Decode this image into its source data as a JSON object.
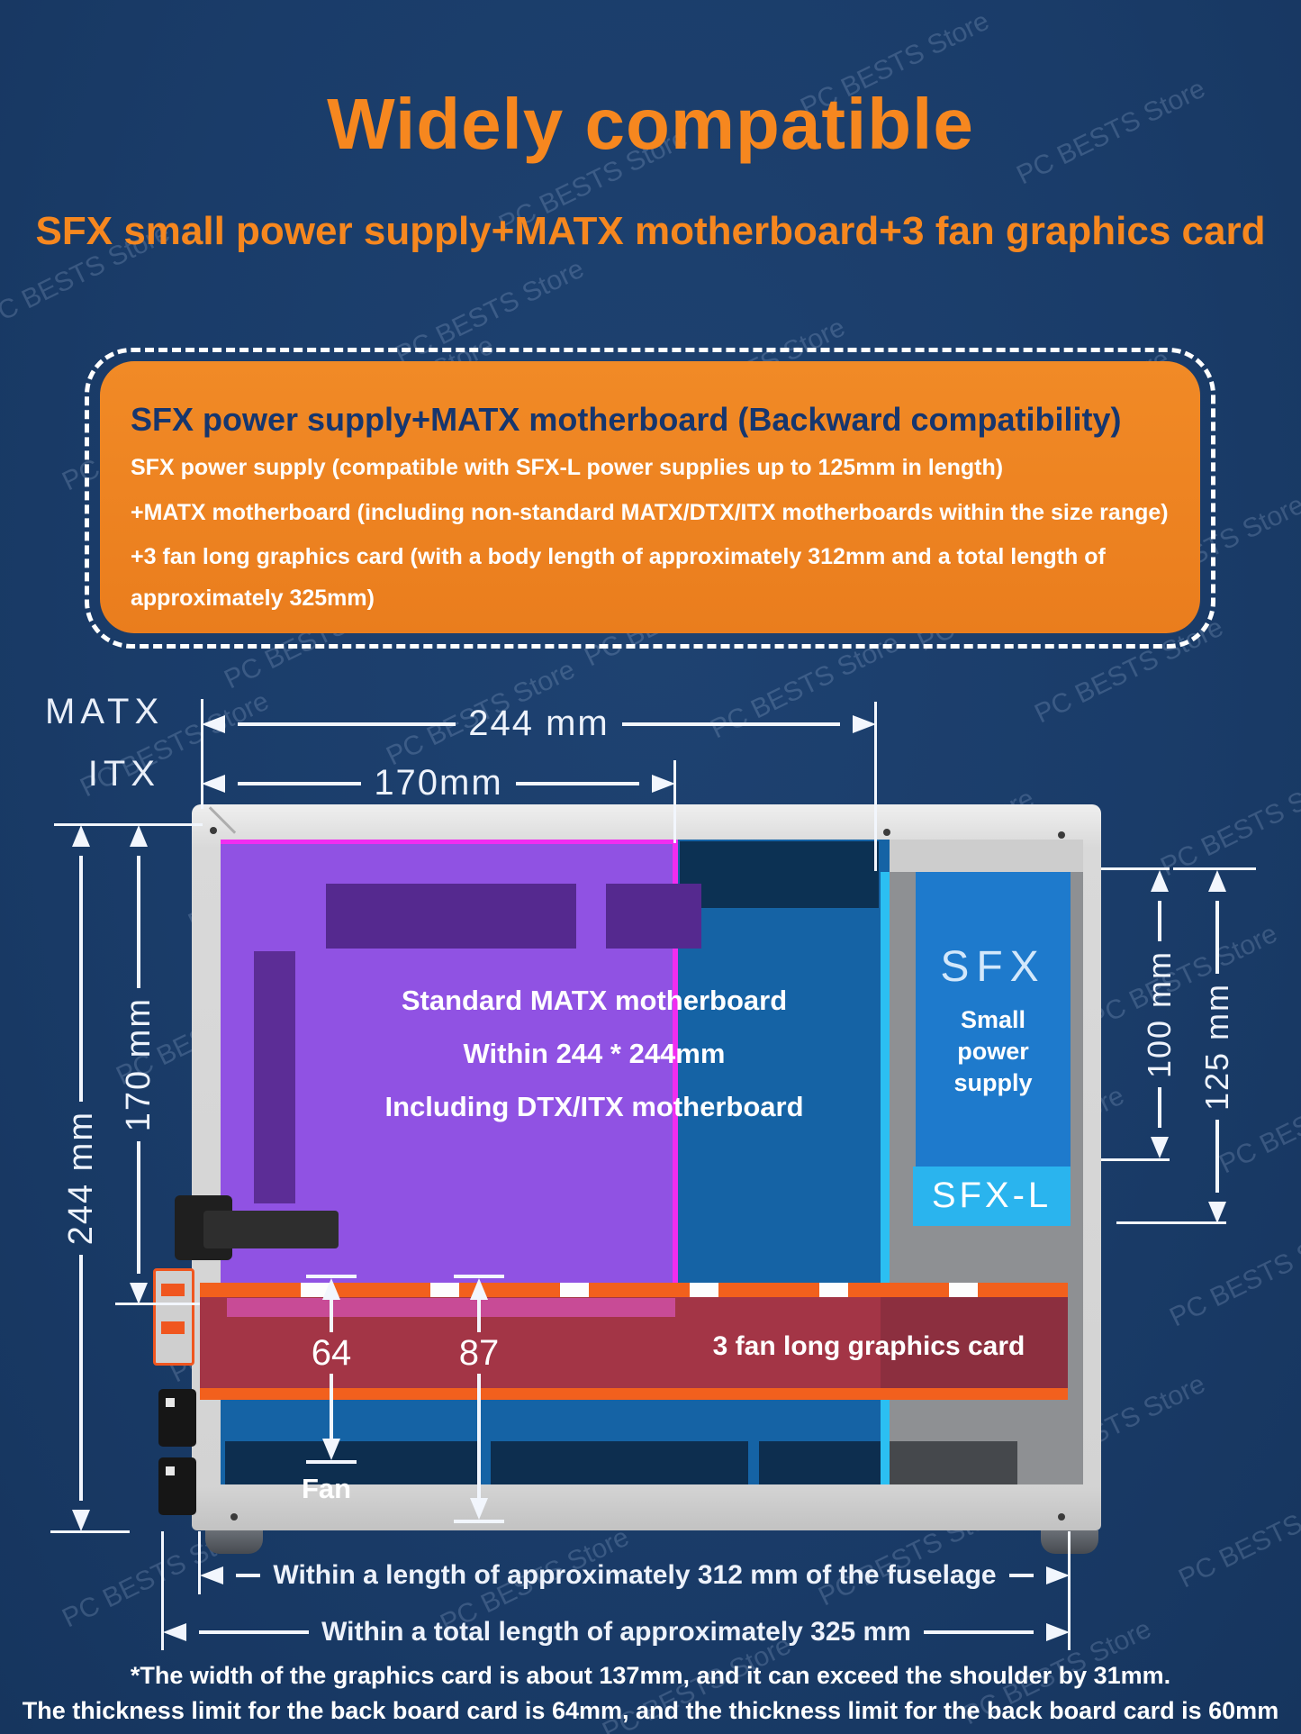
{
  "title": "Widely compatible",
  "subtitle": "SFX small power supply+MATX motherboard+3 fan graphics card",
  "info_box": {
    "heading": "SFX power supply+MATX motherboard (Backward compatibility)",
    "lines": [
      "SFX power supply (compatible with SFX-L power supplies up to 125mm in length)",
      "+MATX motherboard (including non-standard MATX/DTX/ITX motherboards within the size range)",
      "+3 fan long graphics card (with a body length of approximately 312mm and a total length of",
      "approximately 325mm)"
    ]
  },
  "diagram": {
    "board_labels": {
      "matx": "MATX",
      "itx": "ITX"
    },
    "dims": {
      "width_matx": "244 mm",
      "width_itx": "170mm",
      "left_height_outer": "244 mm",
      "left_height_inner": "170 mm",
      "right_height_psu": "100 mm",
      "right_height_psu_long": "125 mm",
      "slot_offset_64": "64",
      "slot_offset_87": "87"
    },
    "motherboard_text": [
      "Standard MATX motherboard",
      "Within 244 * 244mm",
      "Including DTX/ITX motherboard"
    ],
    "psu": {
      "type": "SFX",
      "caption_lines": [
        "Small",
        "power",
        "supply"
      ],
      "long_type": "SFX-L"
    },
    "gpu_label": "3 fan long graphics card",
    "fan_label": "Fan",
    "bottom_dims": {
      "body_length": "Within a length of approximately 312 mm of the fuselage",
      "total_length": "Within a total length of approximately 325 mm"
    }
  },
  "footnotes": [
    "*The width of the graphics card is about 137mm, and it can exceed the shoulder by 31mm.",
    "The thickness limit for the back board card is 64mm, and the thickness limit for the back board card is 60mm"
  ],
  "watermark": {
    "text": "PC BESTS Store"
  },
  "colors": {
    "background_navy": "#1a3c69",
    "accent_orange": "#f6871f",
    "info_box_orange": "#ee8122",
    "heading_blue": "#16366e",
    "motherboard_purple": "#9052e3",
    "magenta_outline": "#f02df0",
    "cavity_blue": "#1563a5",
    "psu_blue": "#1e7acc",
    "psu_long_cyan": "#2ab4ee",
    "gpu_red": "#a33546",
    "slot_orange": "#f2601d",
    "dimension_white": "#f2f6fd"
  }
}
